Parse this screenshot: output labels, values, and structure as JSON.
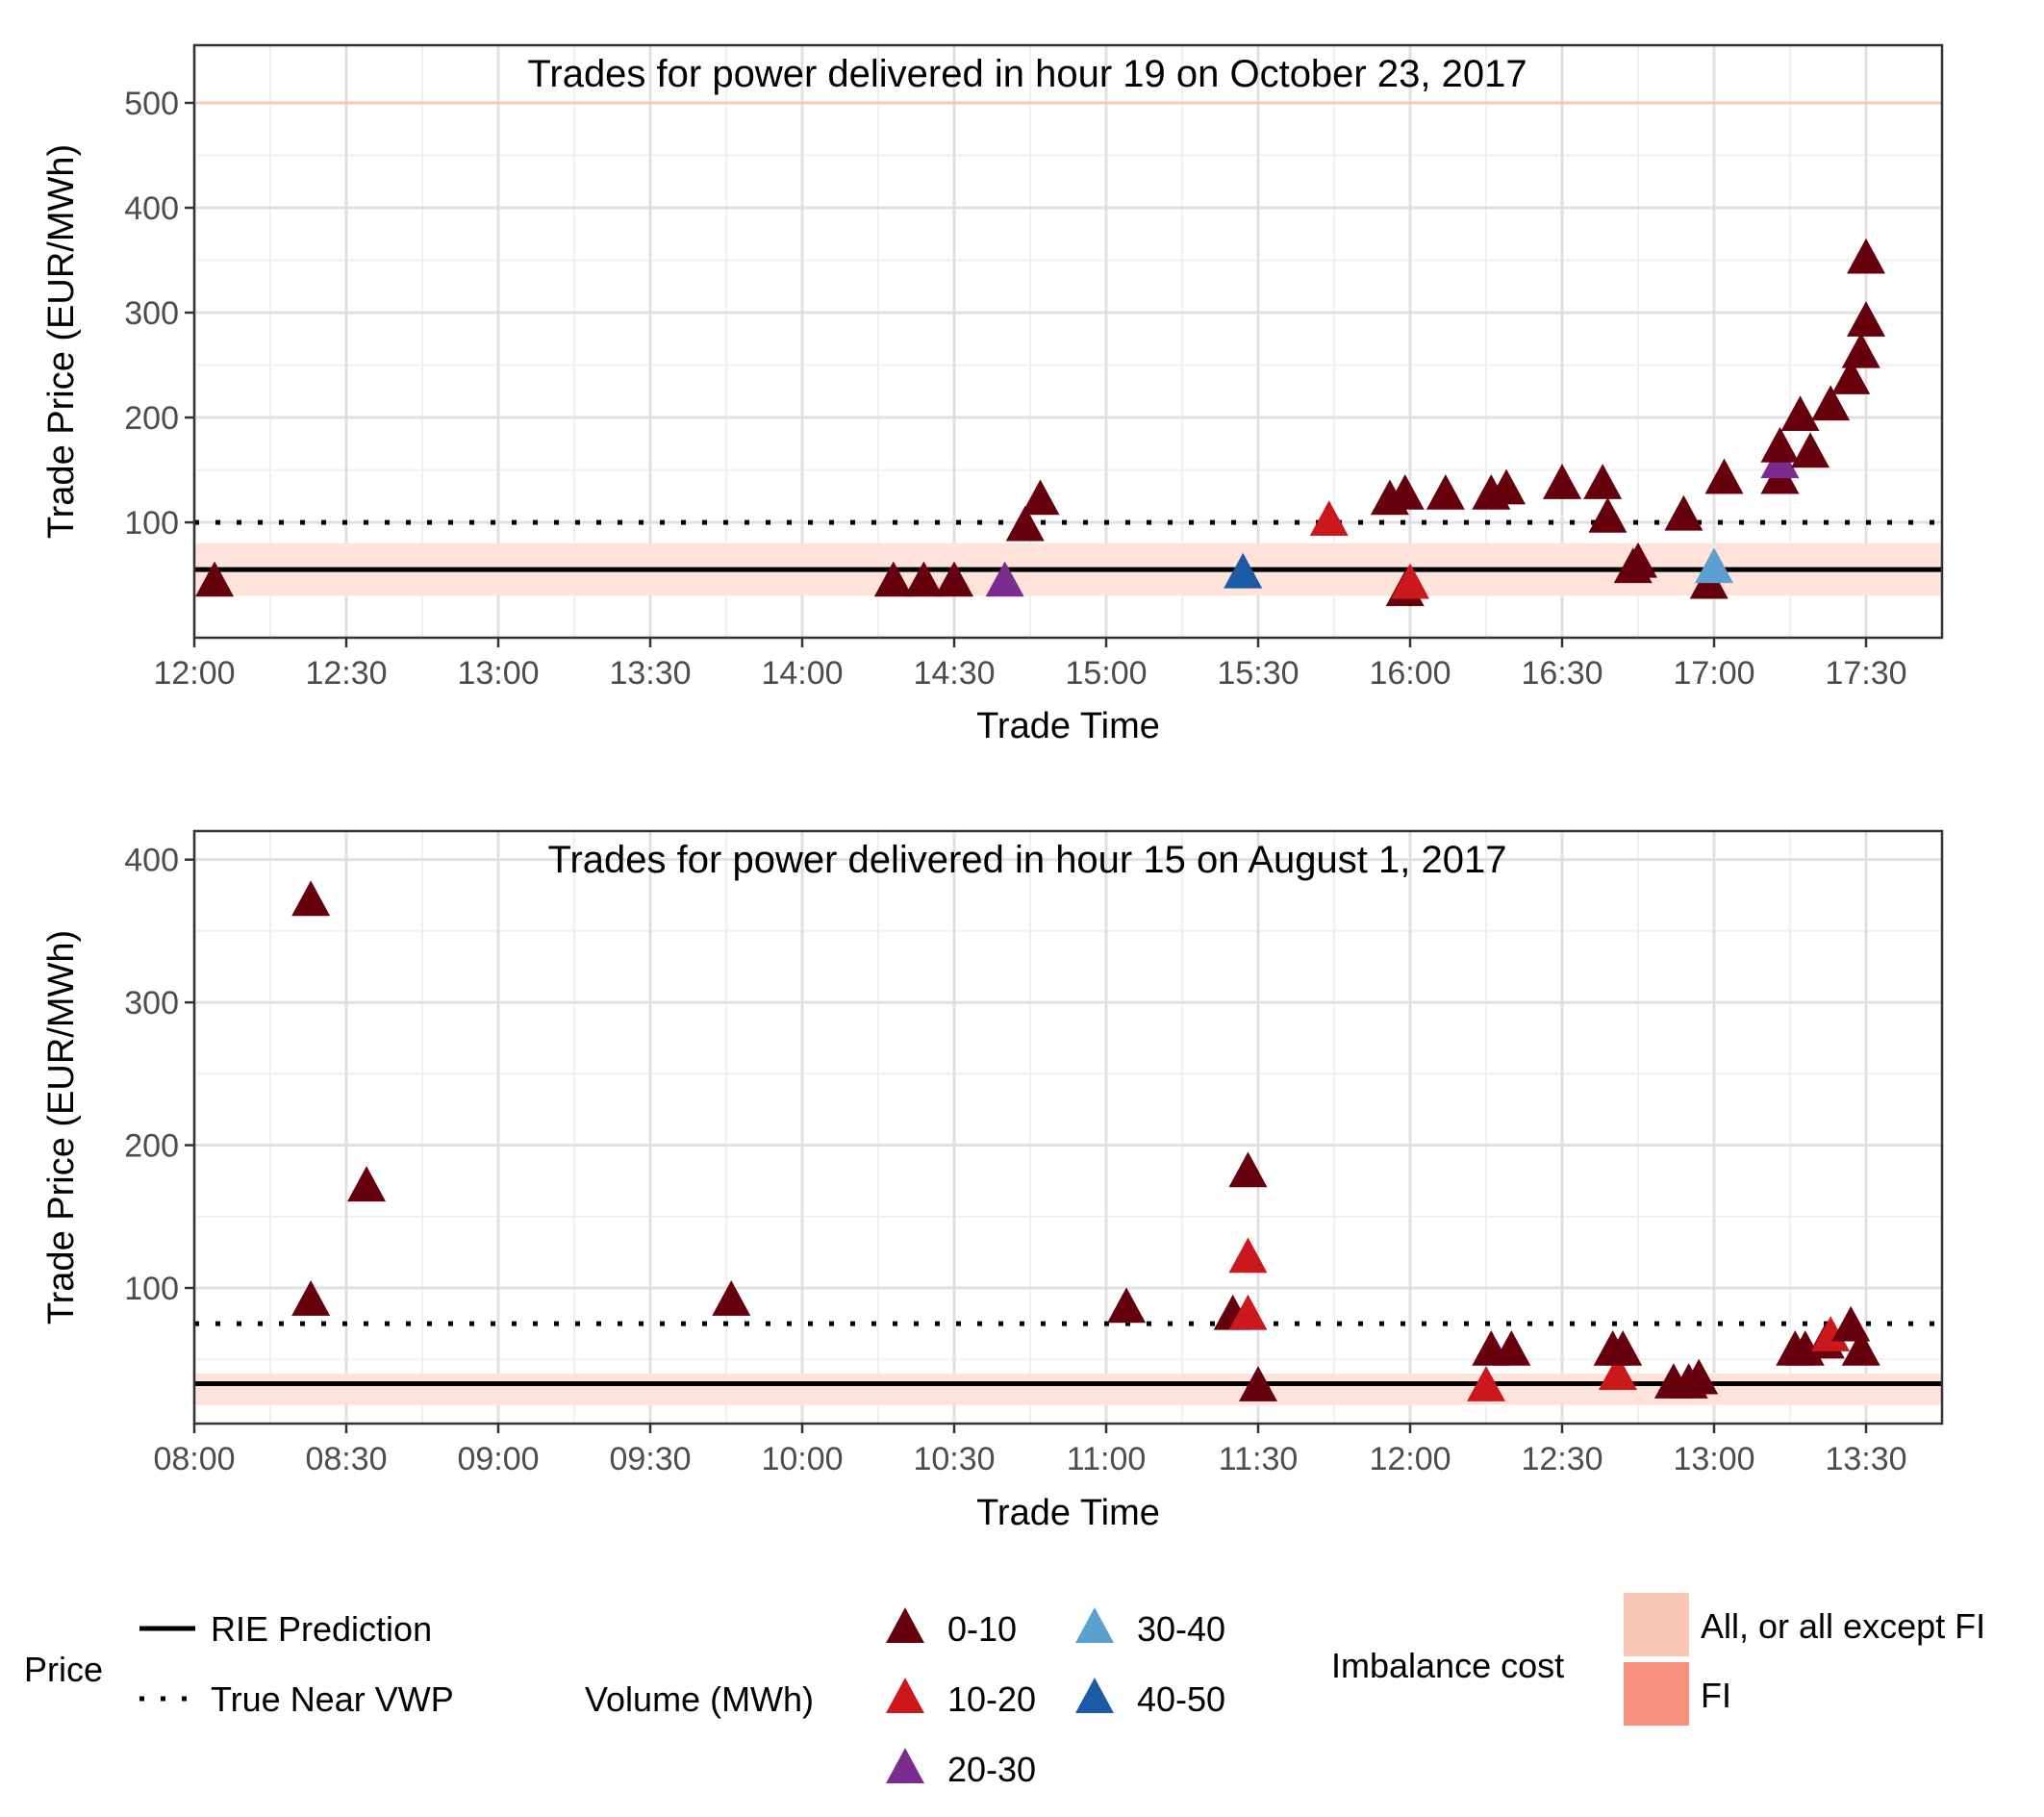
{
  "colors": {
    "vol_0_10": "#67000d",
    "vol_10_20": "#cb181d",
    "vol_20_30": "#7a2d8f",
    "vol_30_40": "#5aa0d0",
    "vol_40_50": "#1c5aa6",
    "imb_all": "#f9c7b3",
    "imb_fi": "#f6917e",
    "imb_band": "#fde3da",
    "grid_major": "#e0e0e0",
    "grid_minor": "#f0f0f0"
  },
  "chart_data": [
    {
      "type": "scatter",
      "title": "Trades for power delivered in hour 19 on October 23, 2017",
      "xlabel": "Trade Time",
      "ylabel": "Trade Price (EUR/MWh)",
      "x_unit": "minutes since 12:00",
      "xlim": [
        0,
        345
      ],
      "ylim": [
        -10,
        555
      ],
      "x_ticks": [
        {
          "v": 0,
          "label": "12:00"
        },
        {
          "v": 30,
          "label": "12:30"
        },
        {
          "v": 60,
          "label": "13:00"
        },
        {
          "v": 90,
          "label": "13:30"
        },
        {
          "v": 120,
          "label": "14:00"
        },
        {
          "v": 150,
          "label": "14:30"
        },
        {
          "v": 180,
          "label": "15:00"
        },
        {
          "v": 210,
          "label": "15:30"
        },
        {
          "v": 240,
          "label": "16:00"
        },
        {
          "v": 270,
          "label": "16:30"
        },
        {
          "v": 300,
          "label": "17:00"
        },
        {
          "v": 330,
          "label": "17:30"
        }
      ],
      "y_ticks": [
        {
          "v": 100,
          "label": "100"
        },
        {
          "v": 200,
          "label": "200"
        },
        {
          "v": 300,
          "label": "300"
        },
        {
          "v": 400,
          "label": "400"
        },
        {
          "v": 500,
          "label": "500"
        }
      ],
      "y_minor": [
        50,
        150,
        250,
        350,
        450
      ],
      "rie_prediction": 55,
      "true_near_vwp": 100,
      "imbalance_band": [
        30,
        80
      ],
      "imbalance_line": 500,
      "points": [
        {
          "x": 4,
          "y": 42,
          "vol": "0-10"
        },
        {
          "x": 138,
          "y": 42,
          "vol": "0-10"
        },
        {
          "x": 144,
          "y": 42,
          "vol": "0-10"
        },
        {
          "x": 150,
          "y": 42,
          "vol": "0-10"
        },
        {
          "x": 160,
          "y": 42,
          "vol": "20-30"
        },
        {
          "x": 164,
          "y": 95,
          "vol": "0-10"
        },
        {
          "x": 167,
          "y": 120,
          "vol": "0-10"
        },
        {
          "x": 207,
          "y": 50,
          "vol": "40-50"
        },
        {
          "x": 224,
          "y": 100,
          "vol": "10-20"
        },
        {
          "x": 236,
          "y": 120,
          "vol": "0-10"
        },
        {
          "x": 239,
          "y": 125,
          "vol": "0-10"
        },
        {
          "x": 239,
          "y": 33,
          "vol": "0-10"
        },
        {
          "x": 240,
          "y": 40,
          "vol": "10-20"
        },
        {
          "x": 247,
          "y": 125,
          "vol": "0-10"
        },
        {
          "x": 256,
          "y": 125,
          "vol": "0-10"
        },
        {
          "x": 259,
          "y": 130,
          "vol": "0-10"
        },
        {
          "x": 270,
          "y": 135,
          "vol": "0-10"
        },
        {
          "x": 278,
          "y": 135,
          "vol": "0-10"
        },
        {
          "x": 279,
          "y": 103,
          "vol": "0-10"
        },
        {
          "x": 284,
          "y": 55,
          "vol": "0-10"
        },
        {
          "x": 285,
          "y": 60,
          "vol": "0-10"
        },
        {
          "x": 294,
          "y": 105,
          "vol": "0-10"
        },
        {
          "x": 299,
          "y": 40,
          "vol": "0-10"
        },
        {
          "x": 300,
          "y": 55,
          "vol": "30-40"
        },
        {
          "x": 302,
          "y": 140,
          "vol": "0-10"
        },
        {
          "x": 313,
          "y": 140,
          "vol": "0-10"
        },
        {
          "x": 313,
          "y": 155,
          "vol": "20-30"
        },
        {
          "x": 313,
          "y": 170,
          "vol": "0-10"
        },
        {
          "x": 317,
          "y": 200,
          "vol": "0-10"
        },
        {
          "x": 319,
          "y": 165,
          "vol": "0-10"
        },
        {
          "x": 323,
          "y": 210,
          "vol": "0-10"
        },
        {
          "x": 327,
          "y": 235,
          "vol": "0-10"
        },
        {
          "x": 329,
          "y": 260,
          "vol": "0-10"
        },
        {
          "x": 330,
          "y": 290,
          "vol": "0-10"
        },
        {
          "x": 330,
          "y": 350,
          "vol": "0-10"
        }
      ]
    },
    {
      "type": "scatter",
      "title": "Trades for power delivered in hour 15 on August 1, 2017",
      "xlabel": "Trade Time",
      "ylabel": "Trade Price (EUR/MWh)",
      "x_unit": "minutes since 08:00",
      "xlim": [
        0,
        345
      ],
      "ylim": [
        5,
        420
      ],
      "x_ticks": [
        {
          "v": 0,
          "label": "08:00"
        },
        {
          "v": 30,
          "label": "08:30"
        },
        {
          "v": 60,
          "label": "09:00"
        },
        {
          "v": 90,
          "label": "09:30"
        },
        {
          "v": 120,
          "label": "10:00"
        },
        {
          "v": 150,
          "label": "10:30"
        },
        {
          "v": 180,
          "label": "11:00"
        },
        {
          "v": 210,
          "label": "11:30"
        },
        {
          "v": 240,
          "label": "12:00"
        },
        {
          "v": 270,
          "label": "12:30"
        },
        {
          "v": 300,
          "label": "13:00"
        },
        {
          "v": 330,
          "label": "13:30"
        }
      ],
      "y_ticks": [
        {
          "v": 100,
          "label": "100"
        },
        {
          "v": 200,
          "label": "200"
        },
        {
          "v": 300,
          "label": "300"
        },
        {
          "v": 400,
          "label": "400"
        }
      ],
      "y_minor": [
        50,
        150,
        250,
        350
      ],
      "rie_prediction": 33,
      "true_near_vwp": 75,
      "imbalance_band": [
        18,
        40
      ],
      "imbalance_line": null,
      "points": [
        {
          "x": 23,
          "y": 370,
          "vol": "0-10"
        },
        {
          "x": 23,
          "y": 90,
          "vol": "0-10"
        },
        {
          "x": 34,
          "y": 170,
          "vol": "0-10"
        },
        {
          "x": 106,
          "y": 90,
          "vol": "0-10"
        },
        {
          "x": 184,
          "y": 85,
          "vol": "0-10"
        },
        {
          "x": 205,
          "y": 80,
          "vol": "0-10"
        },
        {
          "x": 208,
          "y": 80,
          "vol": "10-20"
        },
        {
          "x": 208,
          "y": 120,
          "vol": "10-20"
        },
        {
          "x": 208,
          "y": 180,
          "vol": "0-10"
        },
        {
          "x": 210,
          "y": 30,
          "vol": "0-10"
        },
        {
          "x": 255,
          "y": 30,
          "vol": "10-20"
        },
        {
          "x": 256,
          "y": 55,
          "vol": "0-10"
        },
        {
          "x": 260,
          "y": 55,
          "vol": "0-10"
        },
        {
          "x": 280,
          "y": 55,
          "vol": "0-10"
        },
        {
          "x": 281,
          "y": 38,
          "vol": "10-20"
        },
        {
          "x": 282,
          "y": 55,
          "vol": "0-10"
        },
        {
          "x": 292,
          "y": 32,
          "vol": "0-10"
        },
        {
          "x": 295,
          "y": 32,
          "vol": "0-10"
        },
        {
          "x": 297,
          "y": 35,
          "vol": "0-10"
        },
        {
          "x": 316,
          "y": 55,
          "vol": "0-10"
        },
        {
          "x": 318,
          "y": 55,
          "vol": "0-10"
        },
        {
          "x": 322,
          "y": 60,
          "vol": "0-10"
        },
        {
          "x": 323,
          "y": 65,
          "vol": "10-20"
        },
        {
          "x": 327,
          "y": 72,
          "vol": "0-10"
        },
        {
          "x": 329,
          "y": 55,
          "vol": "0-10"
        }
      ]
    }
  ],
  "legend": {
    "price": {
      "title": "Price",
      "items": [
        {
          "label": "RIE Prediction",
          "style": "solid"
        },
        {
          "label": "True Near VWP",
          "style": "dotted"
        }
      ]
    },
    "volume": {
      "title": "Volume (MWh)",
      "items": [
        {
          "label": "0-10",
          "key": "0-10"
        },
        {
          "label": "10-20",
          "key": "10-20"
        },
        {
          "label": "20-30",
          "key": "20-30"
        },
        {
          "label": "30-40",
          "key": "30-40"
        },
        {
          "label": "40-50",
          "key": "40-50"
        }
      ]
    },
    "imbalance": {
      "title": "Imbalance cost",
      "items": [
        {
          "label": "All, or all except FI",
          "color_key": "imb_all"
        },
        {
          "label": "FI",
          "color_key": "imb_fi"
        }
      ]
    }
  }
}
